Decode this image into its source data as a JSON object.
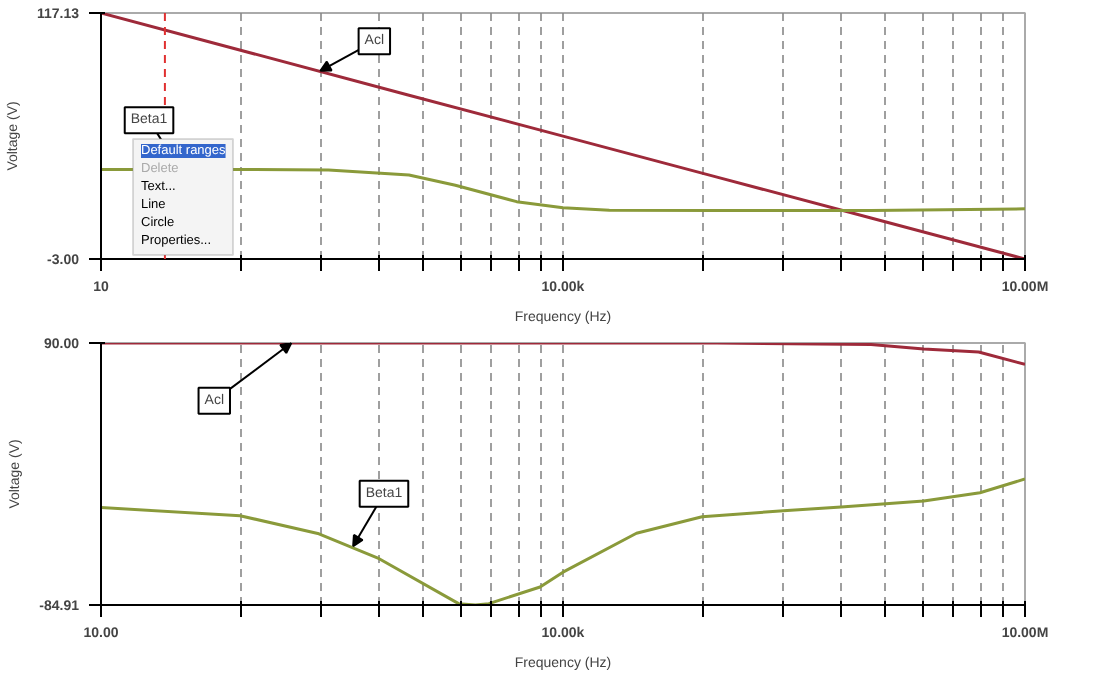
{
  "chart_data": [
    {
      "type": "line",
      "log": "x",
      "xlabel": "Frequency (Hz)",
      "ylabel": "Voltage (V)",
      "grid": "x",
      "xlim": [
        10,
        10000000
      ],
      "ylim": [
        -3.0,
        117.13
      ],
      "xticks": [
        {
          "value": 10,
          "label": "10"
        },
        {
          "value": 80,
          "label": null
        },
        {
          "value": 270,
          "label": null
        },
        {
          "value": 640,
          "label": null
        },
        {
          "value": 1250,
          "label": null
        },
        {
          "value": 2160,
          "label": null
        },
        {
          "value": 3430,
          "label": null
        },
        {
          "value": 5120,
          "label": null
        },
        {
          "value": 7290,
          "label": null
        },
        {
          "value": 10000,
          "label": "10.00k"
        },
        {
          "value": 80000,
          "label": null
        },
        {
          "value": 270000,
          "label": null
        },
        {
          "value": 640000,
          "label": null
        },
        {
          "value": 1250000,
          "label": null
        },
        {
          "value": 2160000,
          "label": null
        },
        {
          "value": 3430000,
          "label": null
        },
        {
          "value": 5120000,
          "label": null
        },
        {
          "value": 7290000,
          "label": null
        },
        {
          "value": 10000000,
          "label": "10.00M"
        }
      ],
      "yticks": [
        {
          "value": 117.13,
          "label": "117.13"
        },
        {
          "value": -3.0,
          "label": "-3.00"
        }
      ],
      "series": [
        {
          "color": "#9e2a3a",
          "x": [
            10,
            1000,
            10000,
            100000,
            1000000,
            10000000
          ],
          "values": [
            117.13,
            77,
            57,
            37,
            17,
            -3.0
          ]
        },
        {
          "color": "#8a9a3a",
          "x": [
            10,
            100,
            300,
            1000,
            2000,
            5000,
            10000,
            20000,
            100000,
            1000000,
            10000000
          ],
          "values": [
            40.7,
            40.7,
            40.5,
            38,
            33,
            25,
            22,
            20.8,
            20.7,
            20.7,
            21.5
          ]
        }
      ],
      "ref_lines": [
        {
          "axis": "x",
          "value": 26,
          "color": "#e03030",
          "line_style": "dashed"
        }
      ],
      "annotations": [
        {
          "text": "Acl",
          "x": 266,
          "y": 88.9
        },
        {
          "text": "Beta1",
          "x": 32.5,
          "y": 40.7
        },
        "Default ranges",
        "Delete",
        "Text...",
        "Line",
        "Circle",
        "Properties..."
      ]
    },
    {
      "type": "line",
      "log": "x",
      "xlabel": "Frequency (Hz)",
      "ylabel": "Voltage (V)",
      "grid": "x",
      "xlim": [
        10,
        10000000
      ],
      "ylim": [
        -84.91,
        90.0
      ],
      "xticks": [
        {
          "value": 10,
          "label": "10.00"
        },
        {
          "value": 80,
          "label": null
        },
        {
          "value": 270,
          "label": null
        },
        {
          "value": 640,
          "label": null
        },
        {
          "value": 1250,
          "label": null
        },
        {
          "value": 2160,
          "label": null
        },
        {
          "value": 3430,
          "label": null
        },
        {
          "value": 5120,
          "label": null
        },
        {
          "value": 7290,
          "label": null
        },
        {
          "value": 10000,
          "label": "10.00k"
        },
        {
          "value": 80000,
          "label": null
        },
        {
          "value": 270000,
          "label": null
        },
        {
          "value": 640000,
          "label": null
        },
        {
          "value": 1250000,
          "label": null
        },
        {
          "value": 2160000,
          "label": null
        },
        {
          "value": 3430000,
          "label": null
        },
        {
          "value": 5120000,
          "label": null
        },
        {
          "value": 7290000,
          "label": null
        },
        {
          "value": 10000000,
          "label": "10.00M"
        }
      ],
      "yticks": [
        {
          "value": 90.0,
          "label": "90.00"
        },
        {
          "value": -84.91,
          "label": "-84.91"
        }
      ],
      "series": [
        {
          "color": "#9e2a3a",
          "x": [
            10,
            100000,
            300000,
            1000000,
            2200000,
            5000000,
            10000000
          ],
          "values": [
            90,
            90,
            89.5,
            89,
            86,
            84,
            75.7
          ]
        },
        {
          "color": "#8a9a3a",
          "x": [
            10,
            80,
            260,
            640,
            2100,
            2700,
            3300,
            7100,
            10000,
            30000,
            80000,
            270000,
            640000,
            2200000,
            5100000,
            10000000
          ],
          "values": [
            -19.9,
            -25.3,
            -37.4,
            -54,
            -84,
            -84.91,
            -84,
            -72.9,
            -63,
            -37,
            -26,
            -22,
            -19.5,
            -15.5,
            -10,
            -0.8
          ]
        }
      ],
      "annotations": [
        {
          "text": "Acl",
          "x": 172,
          "y": 90
        },
        {
          "text": "Beta1",
          "x": 434,
          "y": -45.6
        }
      ]
    }
  ]
}
